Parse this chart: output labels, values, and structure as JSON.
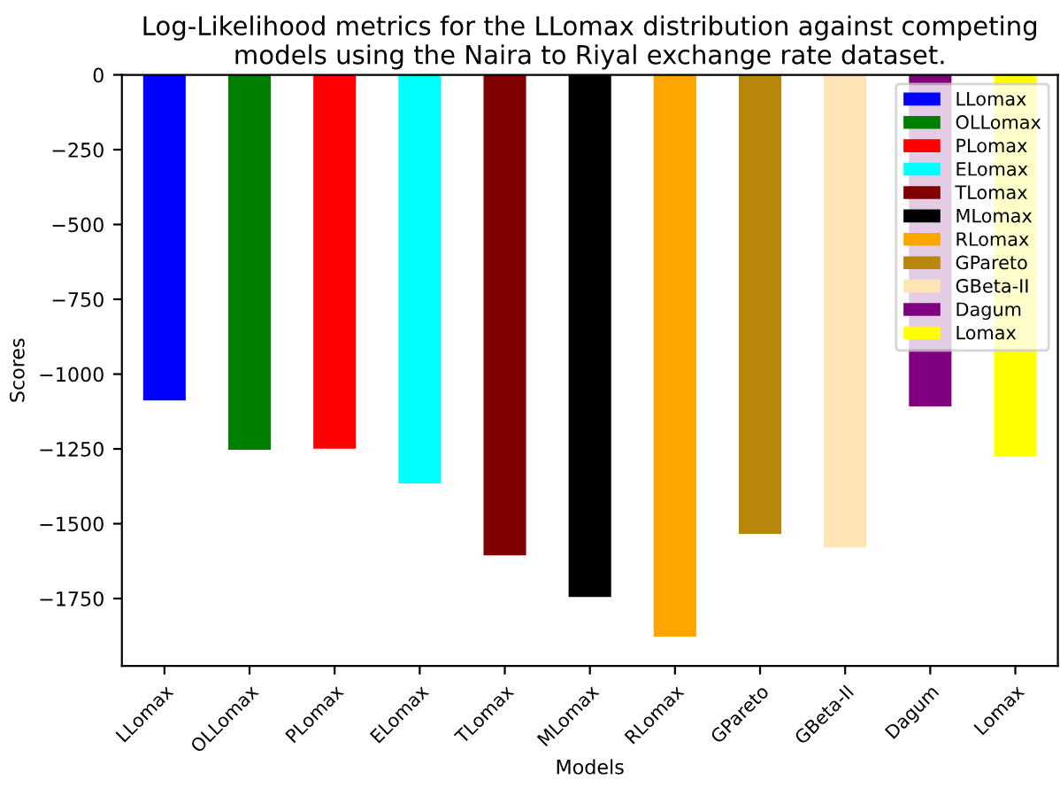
{
  "chart_data": {
    "type": "bar",
    "title": "Log-Likelihood metrics for the LLomax distribution against competing models using the Naira to Riyal exchange rate dataset.",
    "xlabel": "Models",
    "ylabel": "Scores",
    "categories": [
      "LLomax",
      "OLLomax",
      "PLomax",
      "ELomax",
      "TLomax",
      "MLomax",
      "RLomax",
      "GPareto",
      "GBeta-II",
      "Dagum",
      "Lomax"
    ],
    "series": [
      {
        "name": "LLomax",
        "color": "#0000ff",
        "values": [
          -1088,
          null,
          null,
          null,
          null,
          null,
          null,
          null,
          null,
          null,
          null
        ]
      },
      {
        "name": "OLLomax",
        "color": "#008000",
        "values": [
          null,
          -1253,
          null,
          null,
          null,
          null,
          null,
          null,
          null,
          null,
          null
        ]
      },
      {
        "name": "PLomax",
        "color": "#ff0000",
        "values": [
          null,
          null,
          -1249,
          null,
          null,
          null,
          null,
          null,
          null,
          null,
          null
        ]
      },
      {
        "name": "ELomax",
        "color": "#00ffff",
        "values": [
          null,
          null,
          null,
          -1365,
          null,
          null,
          null,
          null,
          null,
          null,
          null
        ]
      },
      {
        "name": "TLomax",
        "color": "#800000",
        "values": [
          null,
          null,
          null,
          null,
          -1606,
          null,
          null,
          null,
          null,
          null,
          null
        ]
      },
      {
        "name": "MLomax",
        "color": "#000000",
        "values": [
          null,
          null,
          null,
          null,
          null,
          -1745,
          null,
          null,
          null,
          null,
          null
        ]
      },
      {
        "name": "RLomax",
        "color": "#ffa500",
        "values": [
          null,
          null,
          null,
          null,
          null,
          null,
          -1877,
          null,
          null,
          null,
          null
        ]
      },
      {
        "name": "GPareto",
        "color": "#b8860b",
        "values": [
          null,
          null,
          null,
          null,
          null,
          null,
          null,
          -1534,
          null,
          null,
          null
        ]
      },
      {
        "name": "GBeta-II",
        "color": "#ffe4b5",
        "values": [
          null,
          null,
          null,
          null,
          null,
          null,
          null,
          null,
          -1580,
          null,
          null
        ]
      },
      {
        "name": "Dagum",
        "color": "#800080",
        "values": [
          null,
          null,
          null,
          null,
          null,
          null,
          null,
          null,
          null,
          -1108,
          null
        ]
      },
      {
        "name": "Lomax",
        "color": "#ffff00",
        "values": [
          null,
          null,
          null,
          null,
          null,
          null,
          null,
          null,
          null,
          null,
          -1275
        ]
      }
    ],
    "ylim": [
      -1975,
      0
    ],
    "yticks": [
      {
        "value": 0,
        "label": "0"
      },
      {
        "value": -250,
        "label": "−250"
      },
      {
        "value": -500,
        "label": "−500"
      },
      {
        "value": -750,
        "label": "−750"
      },
      {
        "value": -1000,
        "label": "−1000"
      },
      {
        "value": -1250,
        "label": "−1250"
      },
      {
        "value": -1500,
        "label": "−1500"
      },
      {
        "value": -1750,
        "label": "−1750"
      }
    ],
    "legend": "top right",
    "grid": false
  }
}
